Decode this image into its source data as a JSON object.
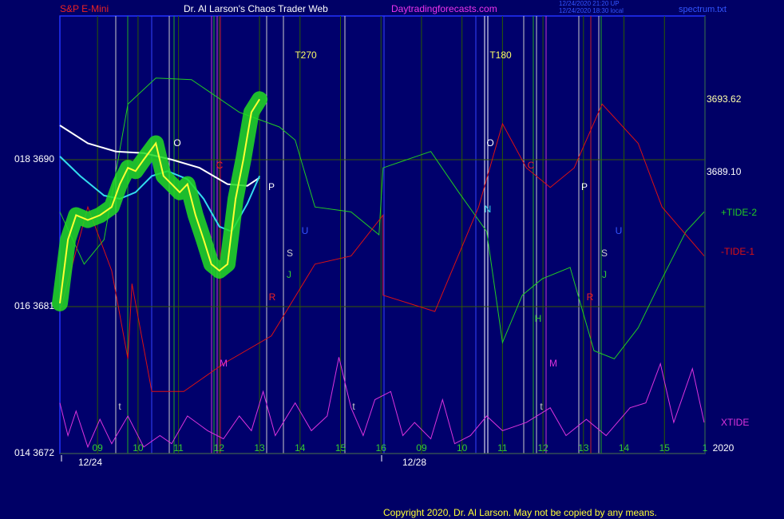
{
  "header": {
    "left": "S&P E-Mini",
    "center": "Dr. Al Larson's Chaos Trader Web",
    "site": "Daytradingforecasts.com",
    "stamp1": "12/24/2020 21:20 UP",
    "stamp2": "12/24/2020 18:30 local",
    "file": "spectrum.txt"
  },
  "footer": "Copyright 2020, Dr. Al Larson. May not be copied by any means.",
  "chart_data": {
    "type": "line",
    "ylim": [
      3672,
      3698.8
    ],
    "yticks": [
      {
        "value": 3672,
        "label": "014  3672"
      },
      {
        "value": 3681,
        "label": "016  3681"
      },
      {
        "value": 3690,
        "label": "018  3690"
      }
    ],
    "xlim": [
      0.07,
      16
    ],
    "xticks": [
      {
        "value": 1,
        "label": "09"
      },
      {
        "value": 2,
        "label": "10"
      },
      {
        "value": 3,
        "label": "11"
      },
      {
        "value": 4,
        "label": "12"
      },
      {
        "value": 5,
        "label": "13"
      },
      {
        "value": 6,
        "label": "14"
      },
      {
        "value": 7,
        "label": "15"
      },
      {
        "value": 8,
        "label": "16"
      },
      {
        "value": 9,
        "label": "09"
      },
      {
        "value": 10,
        "label": "10"
      },
      {
        "value": 11,
        "label": "11"
      },
      {
        "value": 12,
        "label": "12"
      },
      {
        "value": 13,
        "label": "13"
      },
      {
        "value": 14,
        "label": "14"
      },
      {
        "value": 15,
        "label": "15"
      },
      {
        "value": 16,
        "label": "1"
      }
    ],
    "dates": [
      "12/24",
      "12/28",
      "2020"
    ],
    "grid": true,
    "price_labels": [
      "3693.62",
      "3689.10"
    ],
    "annotations": [
      "O",
      "C",
      "P",
      "U",
      "S",
      "J",
      "R",
      "M",
      "T270",
      "T180",
      "O",
      "C",
      "N",
      "P",
      "H",
      "M",
      "U",
      "S",
      "J",
      "R",
      "t",
      "t",
      "t"
    ],
    "series": [
      {
        "name": "+TIDE-2",
        "color": "#22cc22",
        "x": [
          0.07,
          0.67,
          1.16,
          1.75,
          2.44,
          3.32,
          4.5,
          5.49,
          5.88,
          6.37,
          7.26,
          7.95,
          8.05,
          9.23,
          9.92,
          10.61,
          11.0,
          11.49,
          11.98,
          12.67,
          13.26,
          13.76,
          14.35,
          14.94,
          15.53,
          15.98
        ],
        "values": [
          3686.8,
          3683.6,
          3685.1,
          3693.4,
          3695.0,
          3694.9,
          3692.9,
          3692.0,
          3691.2,
          3687.1,
          3686.8,
          3685.4,
          3689.5,
          3690.5,
          3688.0,
          3685.6,
          3678.8,
          3681.7,
          3682.7,
          3683.4,
          3678.3,
          3677.8,
          3679.7,
          3682.7,
          3685.6,
          3686.8
        ]
      },
      {
        "name": "-TIDE-1",
        "color": "#dd1111",
        "x": [
          0.07,
          0.76,
          1.35,
          1.75,
          1.85,
          2.34,
          3.13,
          4.11,
          5.29,
          6.37,
          7.26,
          8.05,
          8.05,
          9.33,
          10.41,
          11.0,
          11.59,
          12.18,
          12.77,
          13.46,
          14.35,
          14.94,
          15.98
        ],
        "values": [
          3680.7,
          3687.1,
          3683.2,
          3677.8,
          3682.4,
          3675.8,
          3675.8,
          3677.5,
          3679.2,
          3683.6,
          3684.1,
          3686.6,
          3681.7,
          3680.7,
          3687.1,
          3692.2,
          3689.5,
          3688.3,
          3689.5,
          3693.4,
          3691.0,
          3687.1,
          3684.1
        ]
      },
      {
        "name": "XTIDE",
        "color": "#dd33dd",
        "x": [
          0.07,
          0.27,
          0.47,
          0.76,
          1.06,
          1.35,
          1.75,
          2.14,
          2.54,
          2.83,
          3.22,
          3.72,
          4.11,
          4.5,
          4.8,
          5.09,
          5.39,
          5.88,
          6.28,
          6.67,
          6.96,
          7.26,
          7.56,
          7.85,
          8.24,
          8.54,
          8.83,
          9.23,
          9.52,
          9.82,
          10.21,
          10.61,
          11.0,
          11.59,
          12.18,
          12.57,
          13.07,
          13.56,
          14.15,
          14.54,
          14.9,
          15.23,
          15.69,
          15.98
        ],
        "values": [
          3675.1,
          3673.1,
          3674.6,
          3672.4,
          3674.1,
          3672.6,
          3674.3,
          3672.4,
          3673.1,
          3672.6,
          3674.3,
          3673.4,
          3672.9,
          3674.3,
          3673.4,
          3675.8,
          3673.1,
          3675.1,
          3673.4,
          3674.3,
          3677.9,
          3674.8,
          3673.1,
          3675.3,
          3675.8,
          3673.1,
          3673.9,
          3672.9,
          3675.3,
          3672.6,
          3673.1,
          3674.3,
          3673.4,
          3673.9,
          3674.8,
          3673.1,
          3674.1,
          3673.1,
          3674.8,
          3675.1,
          3677.5,
          3673.9,
          3677.2,
          3673.9
        ]
      },
      {
        "color": "#ffffff",
        "x": [
          0.07,
          0.76,
          1.45,
          2.14,
          2.83,
          3.52,
          4.21,
          4.7,
          5.0
        ],
        "values": [
          3692.1,
          3691.0,
          3690.5,
          3690.4,
          3690.0,
          3689.5,
          3688.5,
          3688.4,
          3688.9
        ]
      },
      {
        "color": "#33ddee",
        "x": [
          0.07,
          0.57,
          1.16,
          1.55,
          1.94,
          2.34,
          2.73,
          3.22,
          3.62,
          4.01,
          4.31,
          4.7,
          5.0
        ],
        "values": [
          3690.2,
          3689.0,
          3687.8,
          3687.6,
          3688.0,
          3689.0,
          3689.3,
          3688.8,
          3687.6,
          3685.9,
          3685.6,
          3687.3,
          3689.0
        ]
      },
      {
        "color": "#ffff33",
        "x": [
          0.07,
          0.27,
          0.47,
          0.76,
          1.06,
          1.35,
          1.55,
          1.75,
          1.94,
          2.14,
          2.44,
          2.63,
          2.83,
          3.03,
          3.22,
          3.42,
          3.62,
          3.81,
          4.01,
          4.21,
          4.41,
          4.6,
          4.8,
          5.0
        ],
        "values": [
          3681.2,
          3685.1,
          3686.6,
          3686.3,
          3686.6,
          3687.1,
          3688.5,
          3689.5,
          3689.3,
          3690.0,
          3691.0,
          3689.0,
          3688.5,
          3688.0,
          3688.5,
          3686.6,
          3685.1,
          3683.6,
          3683.2,
          3683.6,
          3687.6,
          3690.0,
          3692.9,
          3693.7
        ]
      }
    ]
  }
}
